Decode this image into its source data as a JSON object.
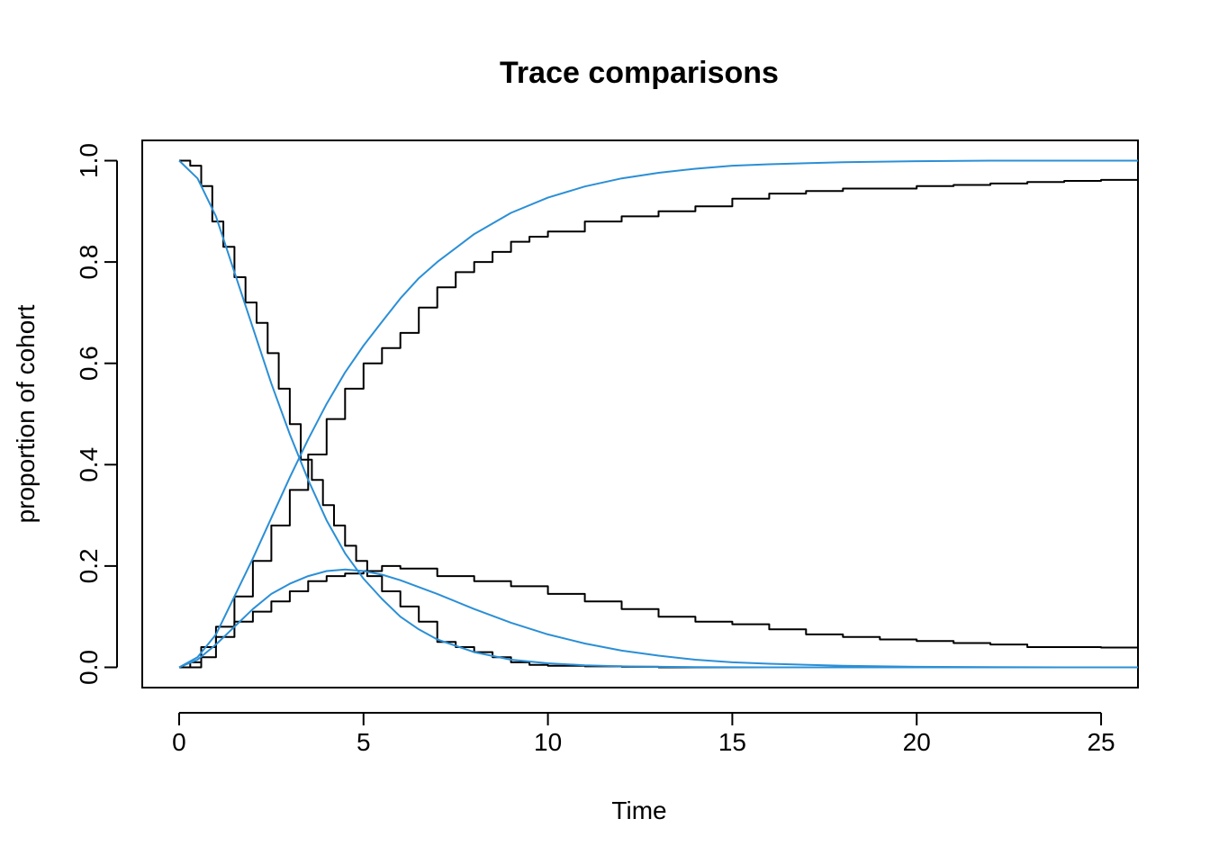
{
  "chart_data": {
    "type": "line",
    "title": "Trace comparisons",
    "xlabel": "Time",
    "ylabel": "proportion of cohort",
    "xlim": [
      -1,
      26
    ],
    "ylim": [
      -0.04,
      1.04
    ],
    "x_ticks": [
      0,
      5,
      10,
      15,
      20,
      25
    ],
    "x_tick_labels": [
      "0",
      "5",
      "10",
      "15",
      "20",
      "25"
    ],
    "y_ticks": [
      0.0,
      0.2,
      0.4,
      0.6,
      0.8,
      1.0
    ],
    "y_tick_labels": [
      "0.0",
      "0.2",
      "0.4",
      "0.6",
      "0.8",
      "1.0"
    ],
    "grid": false,
    "colors": {
      "simulated": "#000000",
      "model": "#2b8fd6"
    },
    "series": [
      {
        "group": "simulated",
        "style": "step",
        "x": [
          0,
          0.3,
          0.6,
          0.9,
          1.2,
          1.5,
          1.8,
          2.1,
          2.4,
          2.7,
          3.0,
          3.3,
          3.6,
          3.9,
          4.2,
          4.5,
          4.8,
          5.1,
          5.5,
          6.0,
          6.5,
          7.0,
          7.5,
          8.0,
          8.5,
          9.0,
          9.5,
          10.0,
          11.0,
          12.0,
          13.0,
          14.0,
          26.0
        ],
        "y": [
          1.0,
          0.99,
          0.95,
          0.88,
          0.83,
          0.77,
          0.72,
          0.68,
          0.62,
          0.55,
          0.48,
          0.41,
          0.37,
          0.32,
          0.28,
          0.24,
          0.21,
          0.18,
          0.15,
          0.12,
          0.09,
          0.05,
          0.04,
          0.03,
          0.02,
          0.01,
          0.005,
          0.003,
          0.002,
          0.001,
          0.0,
          0.0,
          0.0
        ]
      },
      {
        "group": "simulated",
        "style": "step",
        "x": [
          0,
          0.3,
          0.6,
          1.0,
          1.5,
          2.0,
          2.5,
          3.0,
          3.5,
          4.0,
          4.5,
          5.0,
          5.5,
          6.0,
          7.0,
          8.0,
          9.0,
          10.0,
          11.0,
          12.0,
          13.0,
          14.0,
          15.0,
          16.0,
          17.0,
          18.0,
          19.0,
          20.0,
          21.0,
          22.0,
          23.0,
          24.0,
          25.0,
          26.0
        ],
        "y": [
          0.0,
          0.0,
          0.02,
          0.06,
          0.09,
          0.11,
          0.13,
          0.15,
          0.17,
          0.18,
          0.185,
          0.19,
          0.2,
          0.195,
          0.18,
          0.17,
          0.16,
          0.145,
          0.13,
          0.115,
          0.1,
          0.09,
          0.085,
          0.075,
          0.065,
          0.06,
          0.055,
          0.052,
          0.048,
          0.045,
          0.04,
          0.04,
          0.039,
          0.036
        ]
      },
      {
        "group": "simulated",
        "style": "step",
        "x": [
          0,
          0.3,
          0.6,
          1.0,
          1.5,
          2.0,
          2.5,
          3.0,
          3.5,
          4.0,
          4.5,
          5.0,
          5.5,
          6.0,
          6.5,
          7.0,
          7.5,
          8.0,
          8.5,
          9.0,
          9.5,
          10.0,
          11.0,
          12.0,
          13.0,
          14.0,
          15.0,
          16.0,
          17.0,
          18.0,
          19.0,
          20.0,
          21.0,
          22.0,
          23.0,
          24.0,
          25.0,
          26.0
        ],
        "y": [
          0.0,
          0.01,
          0.04,
          0.08,
          0.14,
          0.21,
          0.28,
          0.35,
          0.42,
          0.49,
          0.55,
          0.6,
          0.63,
          0.66,
          0.71,
          0.75,
          0.78,
          0.8,
          0.82,
          0.84,
          0.85,
          0.86,
          0.88,
          0.89,
          0.9,
          0.91,
          0.925,
          0.935,
          0.94,
          0.945,
          0.945,
          0.95,
          0.952,
          0.955,
          0.958,
          0.96,
          0.962,
          0.963
        ]
      },
      {
        "group": "model",
        "style": "smooth",
        "x": [
          0,
          0.5,
          1.0,
          1.5,
          2.0,
          2.5,
          3.0,
          3.5,
          4.0,
          4.5,
          5.0,
          5.5,
          6.0,
          6.5,
          7.0,
          8.0,
          9.0,
          10.0,
          11.0,
          12.0,
          13.0,
          14.0,
          16.0,
          18.0,
          20.0,
          22.0,
          24.0,
          26.0
        ],
        "y": [
          1.0,
          0.965,
          0.89,
          0.78,
          0.67,
          0.56,
          0.46,
          0.37,
          0.29,
          0.225,
          0.175,
          0.135,
          0.1,
          0.075,
          0.055,
          0.03,
          0.015,
          0.008,
          0.004,
          0.002,
          0.001,
          0.0005,
          0.0,
          0.0,
          0.0,
          0.0,
          0.0,
          0.0
        ]
      },
      {
        "group": "model",
        "style": "smooth",
        "x": [
          0,
          0.5,
          1.0,
          1.5,
          2.0,
          2.5,
          3.0,
          3.5,
          4.0,
          4.5,
          5.0,
          5.5,
          6.0,
          7.0,
          8.0,
          9.0,
          10.0,
          11.0,
          12.0,
          13.0,
          14.0,
          15.0,
          16.0,
          18.0,
          20.0,
          22.0,
          24.0,
          26.0
        ],
        "y": [
          0.0,
          0.015,
          0.045,
          0.08,
          0.115,
          0.145,
          0.165,
          0.18,
          0.19,
          0.193,
          0.19,
          0.183,
          0.172,
          0.145,
          0.115,
          0.088,
          0.065,
          0.047,
          0.033,
          0.023,
          0.015,
          0.01,
          0.007,
          0.003,
          0.001,
          0.0005,
          0.0,
          0.0
        ]
      },
      {
        "group": "model",
        "style": "smooth",
        "x": [
          0,
          0.5,
          1.0,
          1.5,
          2.0,
          2.5,
          3.0,
          3.5,
          4.0,
          4.5,
          5.0,
          5.5,
          6.0,
          6.5,
          7.0,
          8.0,
          9.0,
          10.0,
          11.0,
          12.0,
          13.0,
          14.0,
          15.0,
          16.0,
          18.0,
          20.0,
          22.0,
          24.0,
          26.0
        ],
        "y": [
          0.0,
          0.02,
          0.065,
          0.14,
          0.215,
          0.295,
          0.375,
          0.45,
          0.52,
          0.582,
          0.635,
          0.682,
          0.728,
          0.768,
          0.8,
          0.855,
          0.897,
          0.927,
          0.949,
          0.965,
          0.976,
          0.984,
          0.99,
          0.993,
          0.997,
          0.999,
          1.0,
          1.0,
          1.0
        ]
      }
    ]
  }
}
